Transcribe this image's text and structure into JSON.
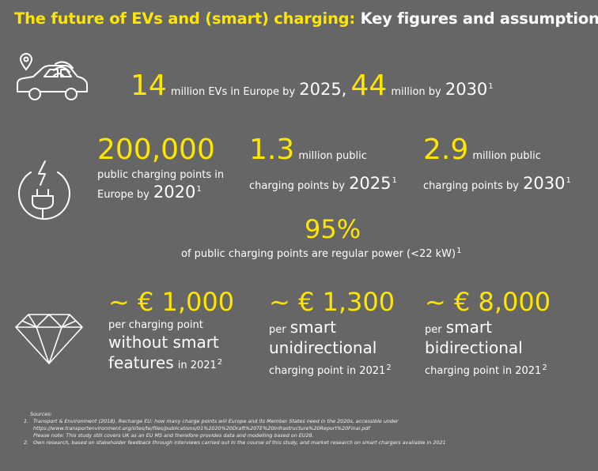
{
  "title": {
    "part1": "The future of EVs and (smart) charging:",
    "part2": "Key figures and assumptions"
  },
  "ev_row": {
    "num1": "14",
    "text1": "million EVs in Europe by",
    "year1": "2025,",
    "num2": "44",
    "text2": "million by",
    "year2": "2030",
    "sup": "1"
  },
  "charging_row": {
    "a_num": "200,000",
    "a_text1": "public charging points in",
    "a_text2": "Europe by",
    "a_year": "2020",
    "a_sup": "1",
    "b_num": "1.3",
    "b_text1": "million public",
    "b_text2": "charging points by",
    "b_year": "2025",
    "b_sup": "1",
    "c_num": "2.9",
    "c_text1": "million public",
    "c_text2": "charging points by",
    "c_year": "2030",
    "c_sup": "1",
    "pct": "95%",
    "pct_text": "of public charging points are regular power (<22 kW)",
    "pct_sup": "1"
  },
  "cost_row": {
    "a_price": "~ € 1,000",
    "a_line1": "per charging point",
    "a_line2": "without smart",
    "a_line3_big": "features",
    "a_line3_small": "in 2021",
    "a_sup": "2",
    "b_price": "~ € 1,300",
    "b_line1_small": "per",
    "b_line1_big": "smart",
    "b_line2": "unidirectional",
    "b_line3": "charging point in 2021",
    "b_sup": "2",
    "c_price": "~ € 8,000",
    "c_line1_small": "per",
    "c_line1_big": "smart",
    "c_line2": "bidirectional",
    "c_line3": "charging point in 2021",
    "c_sup": "2"
  },
  "sources": {
    "heading": "Sources:",
    "n1": "1.",
    "s1_line1": "Transport & Environment (2018). Recharge EU: how many charge points will Europe and its Member States need in the 2020s, accessible under",
    "s1_line2": "https://www.transportenvironment.org/sites/te/files/publications/01%2020%20Draft%20TE%20Infrastructure%20Report%20Final.pdf",
    "s1_line3": "Please note: This study still covers UK as an EU MS and therefore provides data and modelling based on EU28.",
    "n2": "2.",
    "s2_line1": "Own research, based on stakeholder feedback through interviews carried out in the course of this study, and market research on smart chargers available in 2021"
  },
  "icons": [
    "car-icon",
    "location-pin-icon",
    "signal-icon",
    "charging-plug-icon",
    "diamond-icon"
  ],
  "colors": {
    "background": "#666666",
    "accent": "#ffe600",
    "text": "#ffffff"
  }
}
